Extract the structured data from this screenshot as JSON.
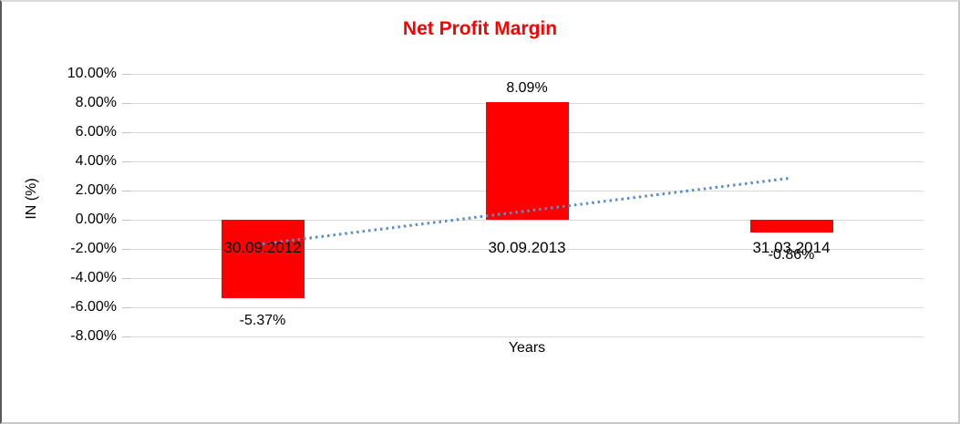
{
  "chart_data": {
    "type": "bar",
    "title": "Net Profit Margin",
    "xlabel": "Years",
    "ylabel": "IN (%)",
    "categories": [
      "30.09.2012",
      "30.09.2013",
      "31.03.2014"
    ],
    "values": [
      -5.37,
      8.09,
      -0.86
    ],
    "data_labels": [
      "-5.37%",
      "8.09%",
      "-0.86%"
    ],
    "ylim": [
      -8,
      10
    ],
    "ytick_step": 2,
    "ytick_labels": [
      "10.00%",
      "8.00%",
      "6.00%",
      "4.00%",
      "2.00%",
      "0.00%",
      "-2.00%",
      "-4.00%",
      "-6.00%",
      "-8.00%"
    ],
    "grid": true,
    "legend": "none",
    "bar_color": "#ff0000",
    "title_color": "#ff0000",
    "trendline": {
      "type": "linear",
      "style": "dotted",
      "color": "#5b8dc8",
      "start_value": -1.64,
      "end_value": 2.88
    }
  }
}
